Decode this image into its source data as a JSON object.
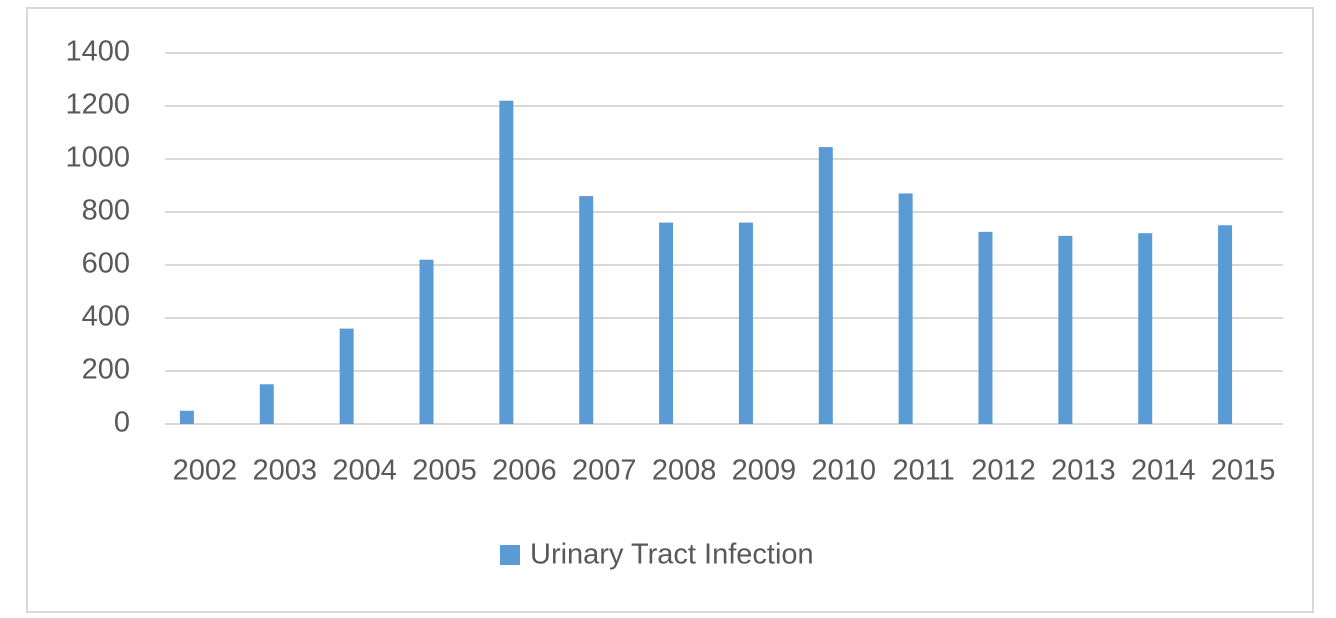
{
  "chart_data": {
    "type": "bar",
    "categories": [
      "2002",
      "2003",
      "2004",
      "2005",
      "2006",
      "2007",
      "2008",
      "2009",
      "2010",
      "2011",
      "2012",
      "2013",
      "2014",
      "2015"
    ],
    "series": [
      {
        "name": "Urinary Tract Infection",
        "color": "#5b9bd5",
        "values": [
          50,
          150,
          360,
          620,
          1220,
          860,
          760,
          760,
          1045,
          870,
          725,
          710,
          720,
          750
        ]
      }
    ],
    "ylim": [
      0,
      1400
    ],
    "yticks": [
      0,
      200,
      400,
      600,
      800,
      1000,
      1200,
      1400
    ],
    "grid": true,
    "legend": "bottom"
  }
}
